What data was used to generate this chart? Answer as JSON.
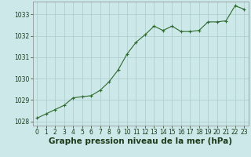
{
  "x": [
    0,
    1,
    2,
    3,
    4,
    5,
    6,
    7,
    8,
    9,
    10,
    11,
    12,
    13,
    14,
    15,
    16,
    17,
    18,
    19,
    20,
    21,
    22,
    23
  ],
  "y": [
    1028.15,
    1028.35,
    1028.55,
    1028.75,
    1029.1,
    1029.15,
    1029.2,
    1029.45,
    1029.85,
    1030.4,
    1031.15,
    1031.7,
    1032.05,
    1032.45,
    1032.25,
    1032.45,
    1032.2,
    1032.2,
    1032.25,
    1032.65,
    1032.65,
    1032.7,
    1033.4,
    1033.25
  ],
  "xlim": [
    -0.5,
    23.5
  ],
  "ylim": [
    1027.8,
    1033.6
  ],
  "yticks": [
    1028,
    1029,
    1030,
    1031,
    1032,
    1033
  ],
  "xticks": [
    0,
    1,
    2,
    3,
    4,
    5,
    6,
    7,
    8,
    9,
    10,
    11,
    12,
    13,
    14,
    15,
    16,
    17,
    18,
    19,
    20,
    21,
    22,
    23
  ],
  "line_color": "#2d6a2d",
  "marker": "+",
  "bg_color": "#cce8e8",
  "grid_color": "#aacccc",
  "xlabel": "Graphe pression niveau de la mer (hPa)",
  "xlabel_color": "#1a3a1a",
  "tick_color": "#1a3a1a",
  "tick_fontsize": 5.5,
  "xlabel_fontsize": 7.5
}
